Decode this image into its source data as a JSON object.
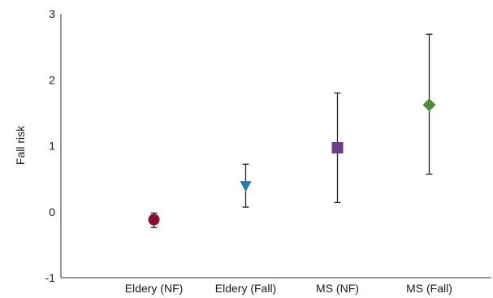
{
  "chart_data": {
    "type": "scatter",
    "title": "",
    "xlabel": "",
    "ylabel": "Fall risk",
    "categories": [
      "Eldery (NF)",
      "Eldery (Fall)",
      "MS (NF)",
      "MS (Fall)"
    ],
    "ylim": [
      -1,
      3
    ],
    "yticks": [
      "-1",
      "0",
      "1",
      "2",
      "3"
    ],
    "grid": false,
    "series": [
      {
        "category": "Eldery (NF)",
        "y": -0.12,
        "lower": -0.24,
        "upper": -0.02,
        "marker": "circle",
        "color": "#8b0d2e"
      },
      {
        "category": "Eldery (Fall)",
        "y": 0.39,
        "lower": 0.07,
        "upper": 0.72,
        "marker": "triangle-down",
        "color": "#1f7ab3"
      },
      {
        "category": "MS (NF)",
        "y": 0.97,
        "lower": 0.14,
        "upper": 1.8,
        "marker": "square",
        "color": "#6b3f86"
      },
      {
        "category": "MS (Fall)",
        "y": 1.62,
        "lower": 0.57,
        "upper": 2.69,
        "marker": "diamond",
        "color": "#4c8a3c"
      }
    ]
  }
}
